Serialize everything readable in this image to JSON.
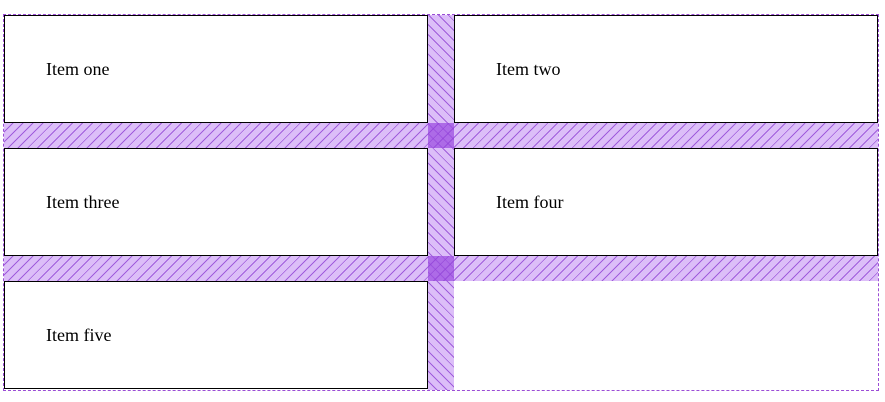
{
  "grid": {
    "items": [
      {
        "label": "Item one"
      },
      {
        "label": "Item two"
      },
      {
        "label": "Item three"
      },
      {
        "label": "Item four"
      },
      {
        "label": "Item five"
      }
    ]
  },
  "colors": {
    "gap_overlay": "#b26ef0",
    "gap_hatch": "#8c3cd2",
    "grid_outline": "#9b4dd6",
    "cell_border": "#000000"
  }
}
